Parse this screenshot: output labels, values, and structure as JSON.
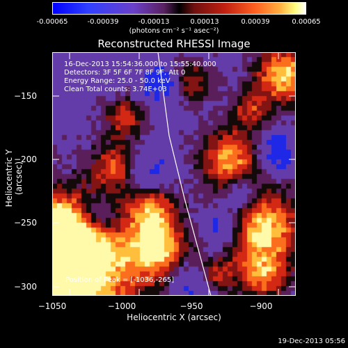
{
  "colorbar": {
    "ticks": [
      "-0.00065",
      "-0.00039",
      "-0.00013",
      "0.00013",
      "0.00039",
      "0.00065"
    ],
    "units": "(photons cm⁻² s⁻¹ asec⁻²)"
  },
  "title": "Reconstructed RHESSI Image",
  "info": {
    "line1": "16-Dec-2013 15:54:36.000 to 15:55:40.000",
    "line2": "Detectors: 3F 5F 6F 7F 8F 9F, Att 0",
    "line3": "Energy Range: 25.0 - 50.0 keV",
    "line4": "Clean     Total counts: 3.74E+03"
  },
  "peak": "Position of Peak = [-1036,-265]",
  "xaxis": {
    "label": "Heliocentric X (arcsec)",
    "ticks": [
      "−1050",
      "−1000",
      "−950",
      "−900"
    ]
  },
  "yaxis": {
    "label": "Heliocentric Y (arcsec)",
    "ticks": [
      "−150",
      "−200",
      "−250",
      "−300"
    ]
  },
  "timestamp": "19-Dec-2013 05:56"
}
